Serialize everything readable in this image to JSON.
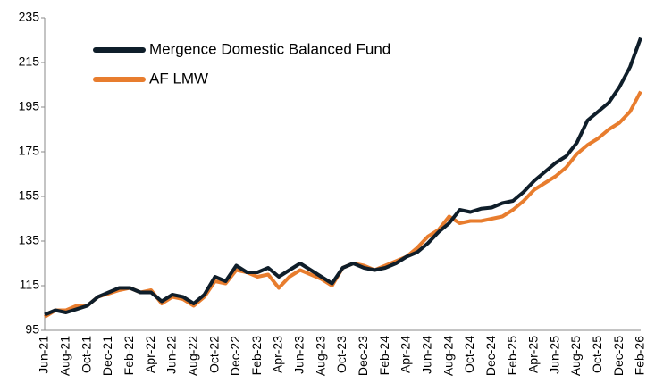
{
  "chart_data": {
    "type": "line",
    "categories": [
      "Jun-21",
      null,
      "Aug-21",
      null,
      "Oct-21",
      null,
      "Dec-21",
      null,
      "Feb-22",
      null,
      "Apr-22",
      null,
      "Jun-22",
      null,
      "Aug-22",
      null,
      "Oct-22",
      null,
      "Dec-22",
      null,
      "Feb-23",
      null,
      "Apr-23",
      null,
      "Jun-23",
      null,
      "Aug-23",
      null,
      "Oct-23",
      null,
      "Dec-23",
      null,
      "Feb-24",
      null,
      "Apr-24",
      null,
      "Jun-24",
      null,
      "Aug-24",
      null,
      "Oct-24",
      null,
      "Dec-24",
      null,
      "Feb-25",
      null,
      "Apr-25",
      null,
      "Jun-25",
      null,
      "Aug-25",
      null,
      "Oct-25",
      null,
      "Dec-25",
      null,
      "Feb-26"
    ],
    "series": [
      {
        "name": "Mergence Domestic Balanced Fund",
        "color": "#0f1e2a",
        "values": [
          102,
          104,
          103,
          104.5,
          106,
          110,
          112,
          114,
          114,
          112,
          112,
          108,
          111,
          110,
          107,
          111,
          119,
          117,
          124,
          121,
          121,
          123,
          119,
          122,
          125,
          122,
          119,
          116,
          123,
          125,
          123,
          122,
          123,
          125,
          128,
          130,
          134,
          139,
          143,
          149,
          148,
          149.5,
          150,
          152,
          153,
          157,
          162,
          166,
          170,
          173,
          179,
          189,
          193,
          197,
          204,
          213,
          226
        ]
      },
      {
        "name": "AF LMW",
        "color": "#e87d2e",
        "values": [
          101,
          104,
          104,
          106,
          106,
          110,
          111.5,
          113,
          114,
          112,
          113,
          107,
          110,
          109,
          106,
          110,
          117,
          116,
          122,
          121,
          119,
          120,
          114,
          119,
          122,
          120,
          118,
          115,
          123,
          125,
          124,
          122,
          124,
          126,
          128,
          132,
          137,
          140,
          146,
          143,
          144,
          144,
          145,
          146,
          149,
          153,
          158,
          161,
          164,
          168,
          174,
          178,
          181,
          185,
          188,
          193,
          202
        ]
      }
    ],
    "ylim": [
      95,
      235
    ],
    "yticks": [
      95,
      115,
      135,
      155,
      175,
      195,
      215,
      235
    ],
    "grid": false,
    "legend": "top-left"
  }
}
